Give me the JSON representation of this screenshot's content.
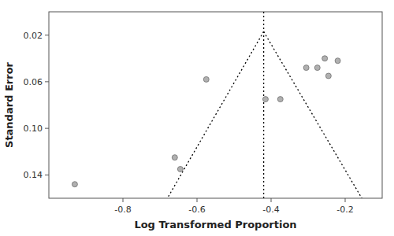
{
  "chart_data": {
    "type": "scatter",
    "x": [
      -0.93,
      -0.66,
      -0.645,
      -0.575,
      -0.415,
      -0.375,
      -0.305,
      -0.275,
      -0.255,
      -0.245,
      -0.22
    ],
    "values": [
      0.148,
      0.125,
      0.135,
      0.058,
      0.075,
      0.075,
      0.048,
      0.048,
      0.04,
      0.055,
      0.042
    ],
    "color": "#b0b0b0",
    "xlabel": "Log Transformed Proportion",
    "ylabel": "Standard Error",
    "xlim": [
      -1.0,
      -0.1
    ],
    "ylim": [
      0.16,
      0.0
    ],
    "xticks": [
      -0.8,
      -0.6,
      -0.4,
      -0.2
    ],
    "yticks": [
      0.02,
      0.06,
      {
        "value": 0.1,
        "label": "0.10"
      },
      0.14
    ],
    "lines": [
      {
        "x": [
          -0.42,
          -0.68
        ],
        "y": [
          0.017,
          0.16
        ],
        "color": "#000000",
        "line_style": "dotted"
      },
      {
        "x": [
          -0.42,
          -0.155
        ],
        "y": [
          0.017,
          0.16
        ],
        "color": "#000000",
        "line_style": "dotted"
      },
      {
        "x": [
          -0.42,
          -0.42
        ],
        "y": [
          0.0,
          0.16
        ],
        "color": "#000000",
        "line_style": "dotted"
      }
    ],
    "grid": false
  }
}
